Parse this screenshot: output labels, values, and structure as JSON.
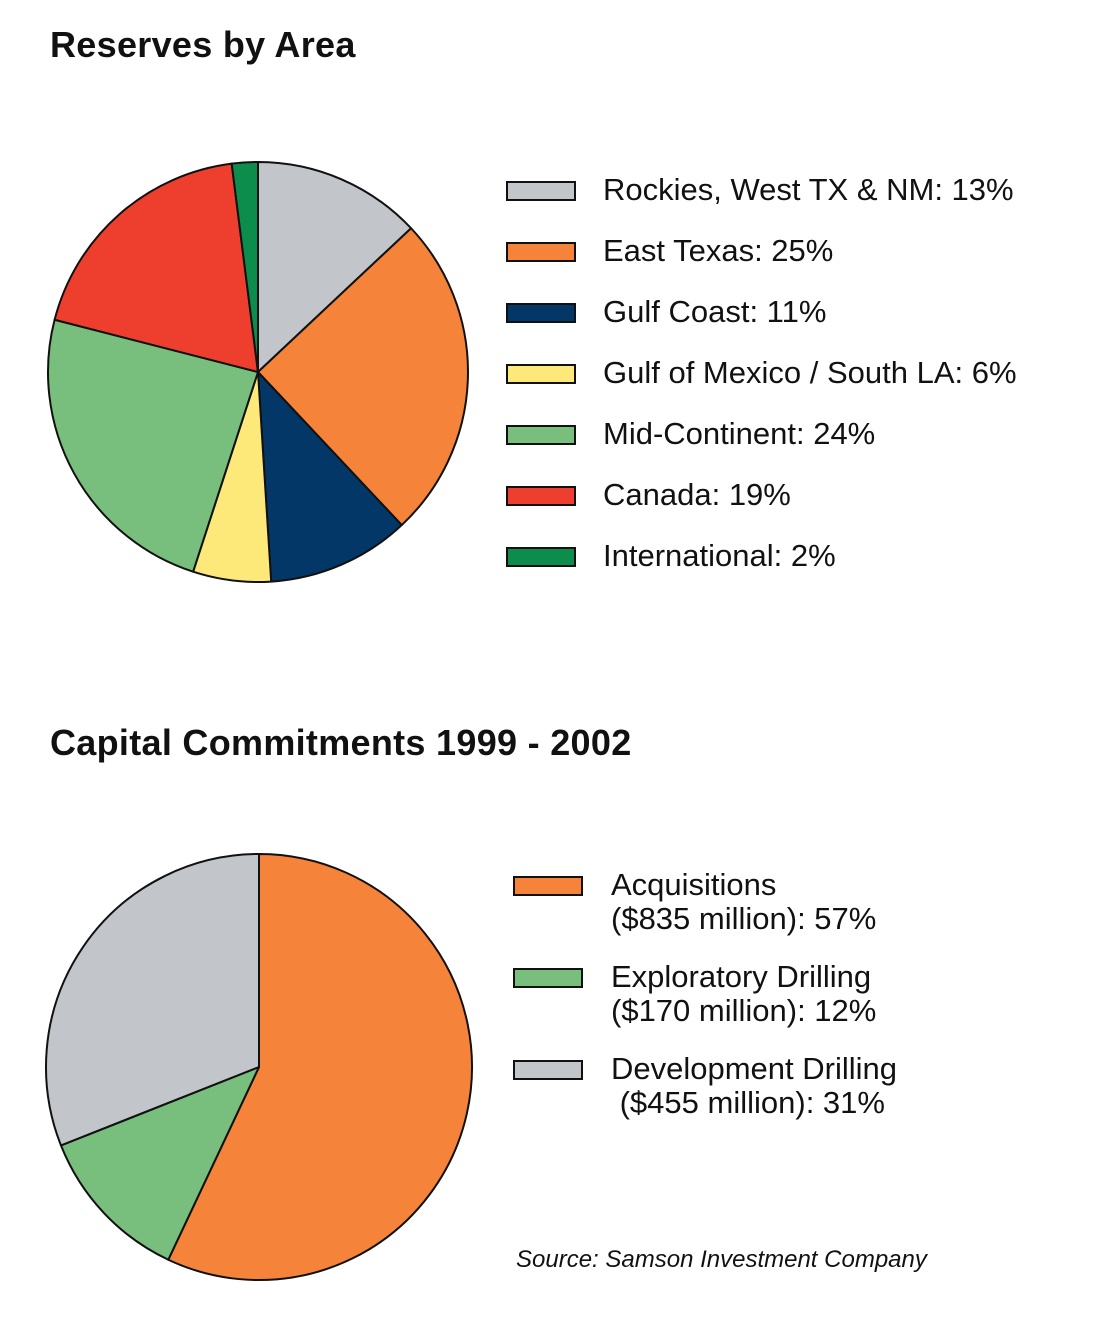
{
  "source": "Source: Samson Investment Company",
  "chart_data": [
    {
      "type": "pie",
      "title": "Reserves by Area",
      "categories": [
        "Rockies, West TX & NM",
        "East Texas",
        "Gulf Coast",
        "Gulf of Mexico / South LA",
        "Mid-Continent",
        "Canada",
        "International"
      ],
      "values": [
        13,
        25,
        11,
        6,
        24,
        19,
        2
      ],
      "colors": [
        "#c2c6ca",
        "#f5843a",
        "#033768",
        "#fde97a",
        "#78be7c",
        "#ee3e2d",
        "#0c8d4c"
      ],
      "legend": [
        "Rockies, West TX & NM: 13%",
        "East Texas: 25%",
        "Gulf Coast: 11%",
        "Gulf of Mexico / South LA: 6%",
        "Mid-Continent: 24%",
        "Canada: 19%",
        "International: 2%"
      ],
      "legend_position": "right"
    },
    {
      "type": "pie",
      "title": "Capital Commitments 1999 - 2002",
      "categories": [
        "Acquisitions",
        "Exploratory Drilling",
        "Development Drilling"
      ],
      "values": [
        57,
        12,
        31
      ],
      "amounts": [
        "$835 million",
        "$170 million",
        "$455 million"
      ],
      "colors": [
        "#f5843a",
        "#78be7c",
        "#c2c6ca"
      ],
      "legend": [
        [
          "Acquisitions",
          "($835 million): 57%"
        ],
        [
          "Exploratory Drilling",
          "($170 million): 12%"
        ],
        [
          "Development Drilling",
          " ($455 million): 31%"
        ]
      ],
      "legend_position": "right"
    }
  ]
}
